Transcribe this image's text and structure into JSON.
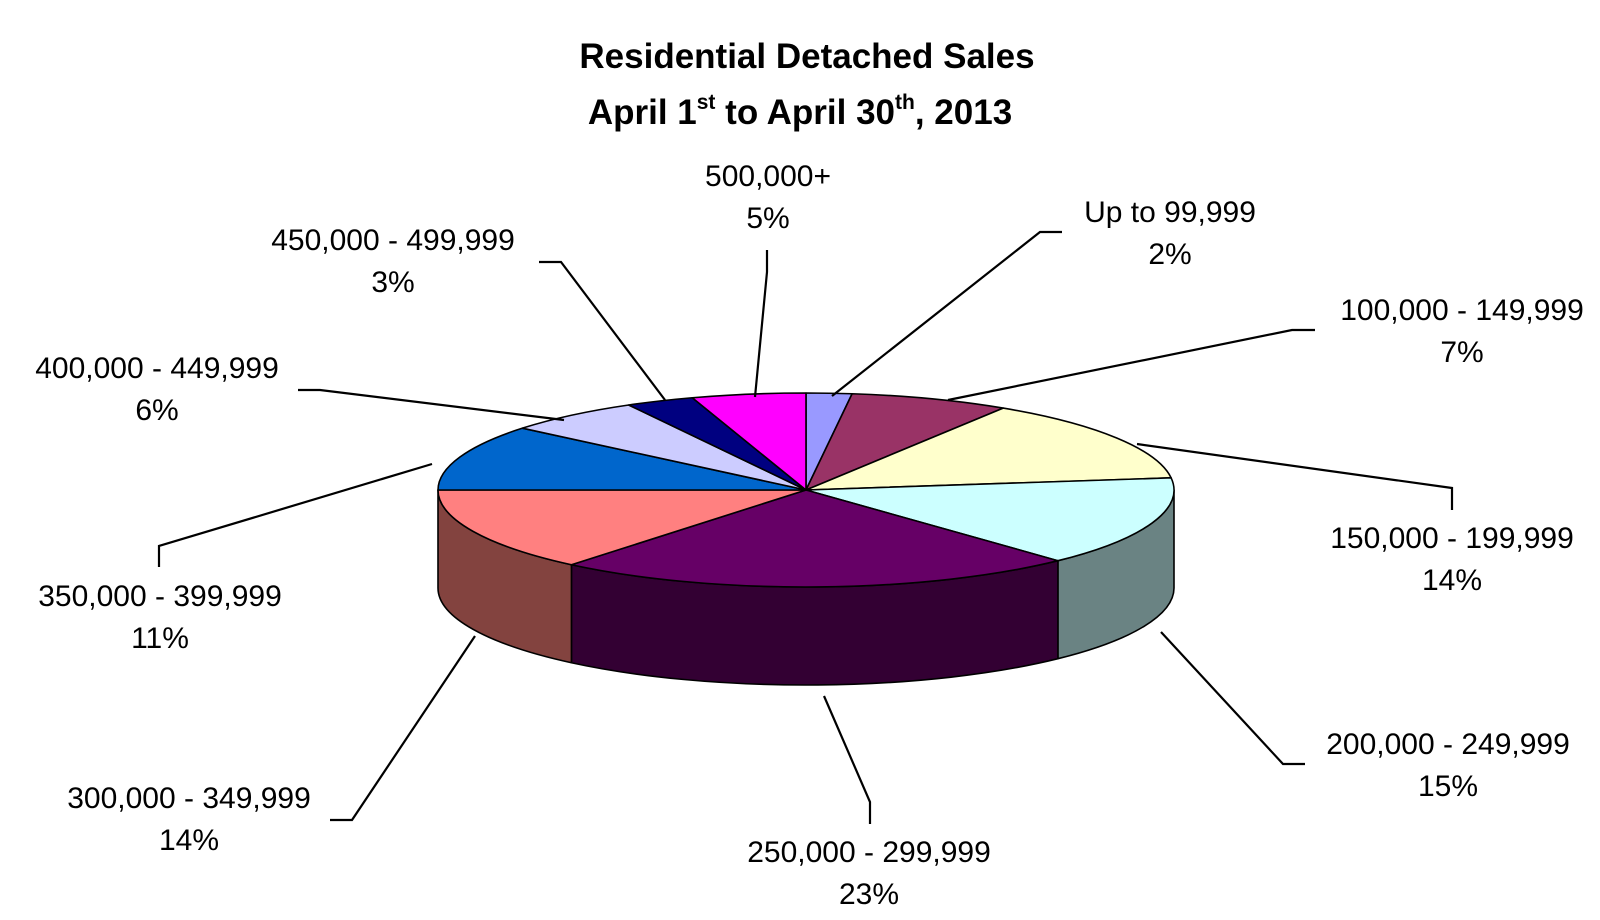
{
  "chart_data": {
    "type": "pie",
    "style": "3d",
    "title": {
      "line1": "Residential Detached Sales",
      "line2_month_start": "April 1",
      "line2_sup_start": "st",
      "line2_mid": " to April 30",
      "line2_sup_end": "th",
      "line2_end": ", 2013"
    },
    "slices": [
      {
        "label": "Up to 99,999",
        "value": 2,
        "value_label": "2%",
        "color": "#9999ff",
        "side_color": "#5c5c99"
      },
      {
        "label": "100,000 - 149,999",
        "value": 7,
        "value_label": "7%",
        "color": "#993366",
        "side_color": "#5c1f3d"
      },
      {
        "label": "150,000 - 199,999",
        "value": 14,
        "value_label": "14%",
        "color": "#ffffcc",
        "side_color": "#99997a"
      },
      {
        "label": "200,000 - 249,999",
        "value": 15,
        "value_label": "15%",
        "color": "#ccffff",
        "side_color": "#6a8383"
      },
      {
        "label": "250,000 - 299,999",
        "value": 23,
        "value_label": "23%",
        "color": "#660066",
        "side_color": "#330033"
      },
      {
        "label": "300,000 - 349,999",
        "value": 14,
        "value_label": "14%",
        "color": "#ff8080",
        "side_color": "#83433f"
      },
      {
        "label": "350,000 - 399,999",
        "value": 11,
        "value_label": "11%",
        "color": "#0066cc",
        "side_color": "#003d7a"
      },
      {
        "label": "400,000 - 449,999",
        "value": 6,
        "value_label": "6%",
        "color": "#ccccff",
        "side_color": "#7a7a99"
      },
      {
        "label": "450,000 - 499,999",
        "value": 3,
        "value_label": "3%",
        "color": "#000080",
        "side_color": "#00004d"
      },
      {
        "label": "500,000+",
        "value": 5,
        "value_label": "5%",
        "color": "#ff00ff",
        "side_color": "#990099"
      }
    ]
  }
}
